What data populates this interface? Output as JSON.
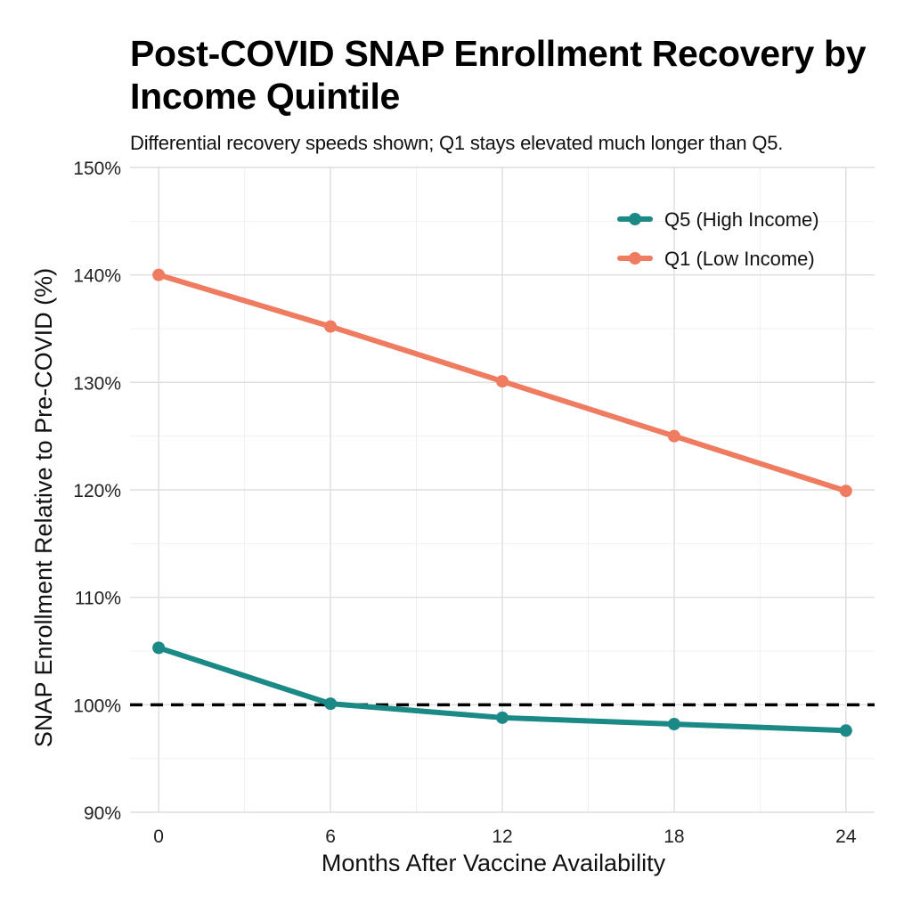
{
  "chart_data": {
    "type": "line",
    "title": "Post-COVID SNAP Enrollment Recovery by Income Quintile",
    "subtitle": "Differential recovery speeds shown; Q1 stays elevated much longer than Q5.",
    "xlabel": "Months After Vaccine Availability",
    "ylabel": "SNAP Enrollment Relative to Pre-COVID (%)",
    "x": [
      0,
      6,
      12,
      18,
      24
    ],
    "x_ticks": [
      "0",
      "6",
      "12",
      "18",
      "24"
    ],
    "xlim": [
      -1,
      25
    ],
    "y_ticks": [
      90,
      100,
      110,
      120,
      130,
      140,
      150
    ],
    "y_tick_labels": [
      "90%",
      "100%",
      "110%",
      "120%",
      "130%",
      "140%",
      "150%"
    ],
    "ylim": [
      90,
      150
    ],
    "grid": true,
    "reference_line": {
      "y": 100,
      "style": "dashed",
      "color": "#000000"
    },
    "legend_position": "top-right",
    "series": [
      {
        "name": "Q5 (High Income)",
        "color": "#1b8a87",
        "values": [
          105.3,
          100.1,
          98.8,
          98.2,
          97.6
        ]
      },
      {
        "name": "Q1 (Low Income)",
        "color": "#ef7b60",
        "values": [
          140.0,
          135.2,
          130.1,
          125.0,
          119.9
        ]
      }
    ]
  }
}
